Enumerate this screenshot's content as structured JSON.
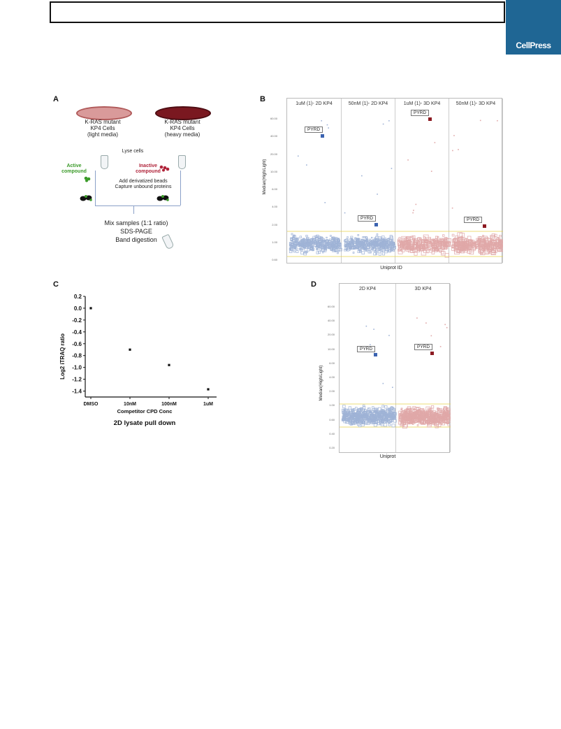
{
  "journal": {
    "logo_text": "CellPress",
    "color": "#1f6694"
  },
  "panelA": {
    "label": "A",
    "left_cells": "K-RAS mutant\nKP4 Cells\n(light media)",
    "right_cells": "K-RAS mutant\nKP4 Cells\n(heavy media)",
    "lyse": "Lyse cells",
    "active": "Active\ncompound",
    "inactive": "Inactive\ncompound",
    "beads": "Add derivatized beads\nCapture unbound proteins",
    "mix": "Mix samples (1:1 ratio)",
    "sds": "SDS-PAGE",
    "band": "Band digestion",
    "colors": {
      "light_dish": "#d99a9a",
      "heavy_dish": "#7a1820",
      "active": "#3a9a28",
      "inactive": "#b0243a"
    }
  },
  "panelB": {
    "label": "B",
    "facets": [
      "1uM (1)- 2D KP4",
      "50nM (1)- 2D KP4",
      "1uM (1)- 3D KP4",
      "50nM (1)- 3D KP4"
    ],
    "ylabel": "Median(High/Light)",
    "xlabel": "Uniprot ID",
    "yticks": [
      "60.00",
      "40.00",
      "20.00",
      "10.00",
      "6.00",
      "4.00",
      "2.00",
      "1.00",
      "0.60"
    ],
    "callout": "PYRD"
  },
  "panelC": {
    "label": "C",
    "ylabel": "Log2 iTRAQ ratio",
    "xlabel": "Competitor CPD Conc",
    "caption": "2D lysate pull down",
    "yticks": [
      "0.2",
      "0.0",
      "-0.2",
      "-0.4",
      "-0.6",
      "-0.8",
      "-1.0",
      "-1.2",
      "-1.4"
    ],
    "chart_data": {
      "type": "scatter",
      "categories": [
        "DMSO",
        "10nM",
        "100nM",
        "1uM"
      ],
      "values": [
        0.0,
        -0.7,
        -0.96,
        -1.37
      ],
      "xlabel": "Competitor CPD Conc",
      "ylabel": "Log2 iTRAQ ratio",
      "ylim": [
        -1.5,
        0.2
      ]
    }
  },
  "panelD": {
    "label": "D",
    "facets": [
      "2D KP4",
      "3D KP4"
    ],
    "ylabel": "Median(High/Light)",
    "xlabel": "Uniprot",
    "yticks": [
      "60.00",
      "40.00",
      "20.00",
      "10.00",
      "6.00",
      "4.00",
      "2.00",
      "1.00",
      "0.60",
      "0.40",
      "0.20"
    ],
    "callout": "PYRD"
  },
  "colors": {
    "blue_points": "#9fb3d6",
    "red_points": "#e0a8a8",
    "blue_marker": "#3b63b0",
    "red_marker": "#8c1a22",
    "yellow_lines": "#e8d24a"
  }
}
